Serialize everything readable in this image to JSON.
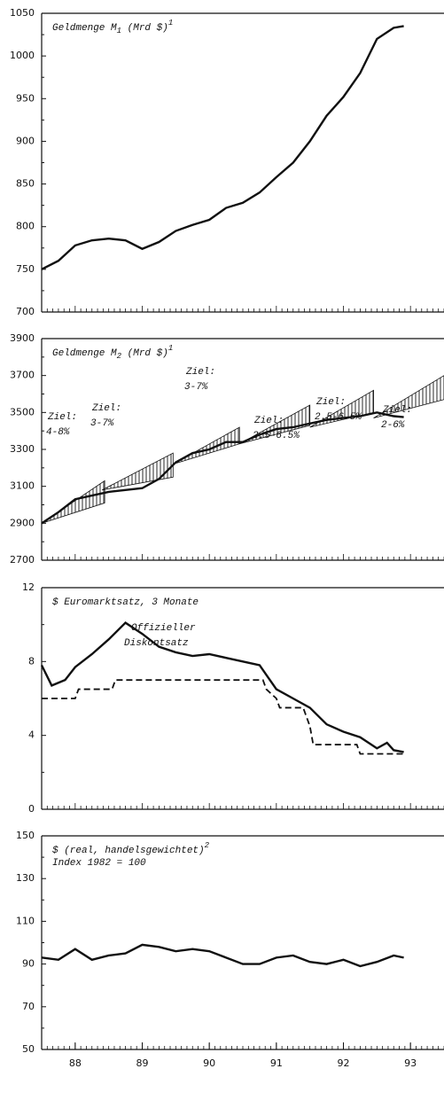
{
  "chart_data": [
    {
      "type": "line",
      "title": {
        "text": "Geldmenge M",
        "sub": "1",
        "rest": " (Mrd $)",
        "sup": "1"
      },
      "xlim": [
        1987.5,
        1993.5
      ],
      "ylim": [
        700,
        1050
      ],
      "yticks": [
        700,
        750,
        800,
        850,
        900,
        950,
        1000,
        1050
      ],
      "series": [
        {
          "color": "#111111",
          "dash": false,
          "x": [
            1987.5,
            1987.75,
            1988.0,
            1988.25,
            1988.5,
            1988.75,
            1989.0,
            1989.25,
            1989.5,
            1989.75,
            1990.0,
            1990.25,
            1990.5,
            1990.75,
            1991.0,
            1991.25,
            1991.5,
            1991.75,
            1992.0,
            1992.25,
            1992.5,
            1992.75,
            1992.9
          ],
          "values": [
            750,
            760,
            778,
            784,
            786,
            784,
            774,
            782,
            795,
            802,
            808,
            822,
            828,
            840,
            858,
            875,
            900,
            930,
            952,
            980,
            1020,
            1033,
            1035
          ]
        }
      ]
    },
    {
      "type": "line",
      "title": {
        "text": "Geldmenge M",
        "sub": "2",
        "rest": " (Mrd $)",
        "sup": "1"
      },
      "xlim": [
        1987.5,
        1993.5
      ],
      "ylim": [
        2700,
        3900
      ],
      "yticks": [
        2700,
        2900,
        3100,
        3300,
        3500,
        3700,
        3900
      ],
      "corridors": [
        {
          "x": [
            1987.5,
            1988.44
          ],
          "start": 2900,
          "upper": 3130,
          "lower": 3010
        },
        {
          "x": [
            1988.4,
            1989.46
          ],
          "start": 3080,
          "upper": 3280,
          "lower": 3150
        },
        {
          "x": [
            1989.46,
            1990.45
          ],
          "start": 3220,
          "upper": 3420,
          "lower": 3330
        },
        {
          "x": [
            1990.45,
            1991.5
          ],
          "start": 3330,
          "upper": 3540,
          "lower": 3430
        },
        {
          "x": [
            1991.5,
            1992.45
          ],
          "start": 3420,
          "upper": 3620,
          "lower": 3500
        },
        {
          "x": [
            1992.45,
            1993.5
          ],
          "start": 3470,
          "upper": 3700,
          "lower": 3570
        }
      ],
      "annotations": [
        [
          "Ziel:",
          "4-8%"
        ],
        [
          "Ziel:",
          "3-7%"
        ],
        [
          "Ziel:",
          "3-7%"
        ],
        [
          "Ziel:",
          "2.5-6.5%"
        ],
        [
          "Ziel:",
          "2.5-6.5%"
        ],
        [
          "Ziel:",
          "2-6%"
        ]
      ],
      "series": [
        {
          "color": "#111111",
          "dash": false,
          "x": [
            1987.5,
            1987.75,
            1988.0,
            1988.25,
            1988.5,
            1988.75,
            1989.0,
            1989.25,
            1989.5,
            1989.75,
            1990.0,
            1990.25,
            1990.5,
            1990.75,
            1991.0,
            1991.25,
            1991.5,
            1991.75,
            1992.0,
            1992.25,
            1992.5,
            1992.75,
            1992.9
          ],
          "values": [
            2900,
            2960,
            3030,
            3050,
            3070,
            3080,
            3090,
            3140,
            3230,
            3280,
            3300,
            3340,
            3340,
            3380,
            3410,
            3420,
            3440,
            3460,
            3470,
            3480,
            3500,
            3480,
            3475
          ]
        }
      ]
    },
    {
      "type": "line",
      "title": {
        "text": "$ Euromarktsatz, 3 Monate"
      },
      "xlim": [
        1987.5,
        1993.5
      ],
      "ylim": [
        0,
        12
      ],
      "yticks": [
        0,
        4,
        8,
        12
      ],
      "series": [
        {
          "color": "#111111",
          "dash": false,
          "x": [
            1987.5,
            1987.65,
            1987.85,
            1988.0,
            1988.25,
            1988.5,
            1988.75,
            1989.0,
            1989.25,
            1989.5,
            1989.75,
            1990.0,
            1990.25,
            1990.5,
            1990.75,
            1991.0,
            1991.25,
            1991.5,
            1991.75,
            1992.0,
            1992.25,
            1992.5,
            1992.65,
            1992.75,
            1992.9
          ],
          "values": [
            7.8,
            6.7,
            7.0,
            7.7,
            8.4,
            9.2,
            10.1,
            9.5,
            8.8,
            8.5,
            8.3,
            8.4,
            8.2,
            8.0,
            7.8,
            6.5,
            6.0,
            5.5,
            4.6,
            4.2,
            3.9,
            3.3,
            3.6,
            3.2,
            3.1
          ]
        },
        {
          "name": [
            "Offizieller",
            "Diskontsatz"
          ],
          "color": "#111111",
          "dash": true,
          "x": [
            1987.5,
            1988.0,
            1988.05,
            1988.55,
            1988.6,
            1990.8,
            1990.85,
            1991.0,
            1991.05,
            1991.4,
            1991.5,
            1991.55,
            1992.2,
            1992.25,
            1992.9
          ],
          "values": [
            6.0,
            6.0,
            6.5,
            6.5,
            7.0,
            7.0,
            6.5,
            6.0,
            5.5,
            5.5,
            4.5,
            3.5,
            3.5,
            3.0,
            3.0
          ]
        }
      ]
    },
    {
      "type": "line",
      "title": {
        "text": "$ (real, handelsgewichtet)",
        "sup": "2",
        "line2": "Index 1982 = 100"
      },
      "xlim": [
        1987.5,
        1993.5
      ],
      "ylim": [
        50,
        150
      ],
      "yticks": [
        50,
        70,
        90,
        110,
        130,
        150
      ],
      "xticks": [
        {
          "value": 1988,
          "label": "88"
        },
        {
          "value": 1989,
          "label": "89"
        },
        {
          "value": 1990,
          "label": "90"
        },
        {
          "value": 1991,
          "label": "91"
        },
        {
          "value": 1992,
          "label": "92"
        },
        {
          "value": 1993,
          "label": "93"
        }
      ],
      "series": [
        {
          "color": "#111111",
          "dash": false,
          "x": [
            1987.5,
            1987.75,
            1988.0,
            1988.25,
            1988.5,
            1988.75,
            1989.0,
            1989.25,
            1989.5,
            1989.75,
            1990.0,
            1990.25,
            1990.5,
            1990.75,
            1991.0,
            1991.25,
            1991.5,
            1991.75,
            1992.0,
            1992.25,
            1992.5,
            1992.75,
            1992.9
          ],
          "values": [
            93,
            92,
            97,
            92,
            94,
            95,
            99,
            98,
            96,
            97,
            96,
            93,
            90,
            90,
            93,
            94,
            91,
            90,
            92,
            89,
            91,
            94,
            93
          ]
        }
      ]
    }
  ]
}
